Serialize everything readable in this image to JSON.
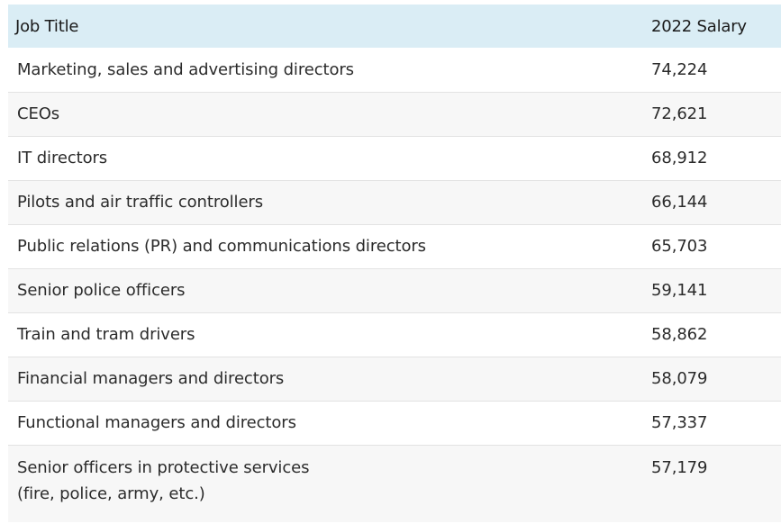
{
  "table": {
    "headers": {
      "job_title": "Job Title",
      "salary": "2022 Salary"
    },
    "rows": [
      {
        "title": "Marketing, sales and advertising directors",
        "salary": "74,224"
      },
      {
        "title": "CEOs",
        "salary": "72,621"
      },
      {
        "title": "IT directors",
        "salary": "68,912"
      },
      {
        "title": "Pilots and air traffic controllers",
        "salary": "66,144"
      },
      {
        "title": "Public relations (PR) and communications directors",
        "salary": "65,703"
      },
      {
        "title": "Senior police officers",
        "salary": "59,141"
      },
      {
        "title": "Train and tram drivers",
        "salary": "58,862"
      },
      {
        "title": "Financial managers and directors",
        "salary": "58,079"
      },
      {
        "title": "Functional managers and directors",
        "salary": "57,337"
      },
      {
        "title": "Senior officers in protective services",
        "title_line2": "(fire, police, army, etc.)",
        "salary": "57,179"
      }
    ]
  },
  "colors": {
    "header_bg": "#daedf5",
    "row_alt_bg": "#f7f7f7",
    "row_border": "#e3e3e3"
  }
}
